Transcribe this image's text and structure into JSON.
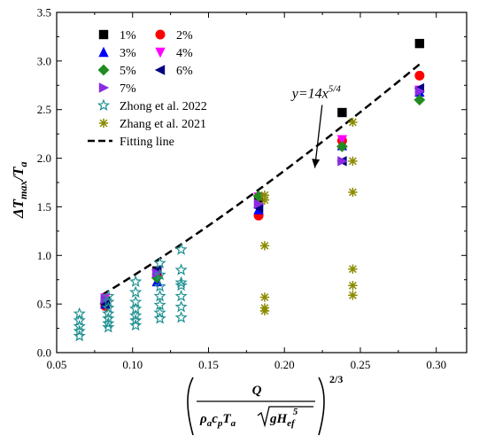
{
  "chart_data": {
    "type": "scatter",
    "title": "",
    "ylabel": "ΔT_max/T_a",
    "ylabel_parts": {
      "base": "ΔT",
      "sub": "max",
      "rest": "/T",
      "sub2": "a"
    },
    "xlabel_parts": {
      "numerator": "Q",
      "den_rho": "ρ",
      "den_rho_sub": "a",
      "den_c": "c",
      "den_c_sub": "p",
      "den_T": "T",
      "den_T_sub": "a",
      "den_sqrt_g": "gH",
      "den_sqrt_sub": "ef",
      "den_sqrt_sup": "5",
      "exponent": "2/3"
    },
    "xlim": [
      0.05,
      0.32
    ],
    "ylim": [
      0.0,
      3.5
    ],
    "xticks": [
      "0.05",
      "0.10",
      "0.15",
      "0.20",
      "0.25",
      "0.30"
    ],
    "xtick_values": [
      0.05,
      0.1,
      0.15,
      0.2,
      0.25,
      0.3
    ],
    "yticks": [
      "0.0",
      "0.5",
      "1.0",
      "1.5",
      "2.0",
      "2.5",
      "3.0",
      "3.5"
    ],
    "ytick_values": [
      0.0,
      0.5,
      1.0,
      1.5,
      2.0,
      2.5,
      3.0,
      3.5
    ],
    "grid": false,
    "legend_position": "top-left",
    "series": [
      {
        "name": "1%",
        "marker": "square",
        "color": "#000000",
        "x": [
          0.082,
          0.116,
          0.183,
          0.238,
          0.289
        ],
        "y": [
          0.53,
          0.84,
          1.55,
          2.47,
          3.18
        ]
      },
      {
        "name": "2%",
        "marker": "circle",
        "color": "#ff0000",
        "x": [
          0.082,
          0.116,
          0.183,
          0.238,
          0.289
        ],
        "y": [
          0.48,
          0.8,
          1.41,
          2.18,
          2.85
        ]
      },
      {
        "name": "3%",
        "marker": "triangle-up",
        "color": "#0000ff",
        "x": [
          0.082,
          0.116,
          0.183,
          0.238,
          0.289
        ],
        "y": [
          0.5,
          0.73,
          1.47,
          2.13,
          2.68
        ]
      },
      {
        "name": "4%",
        "marker": "triangle-down",
        "color": "#ff00ff",
        "x": [
          0.082,
          0.116,
          0.183,
          0.238,
          0.289
        ],
        "y": [
          0.56,
          0.82,
          1.6,
          2.19,
          2.7
        ]
      },
      {
        "name": "5%",
        "marker": "diamond",
        "color": "#228b22",
        "x": [
          0.082,
          0.116,
          0.183,
          0.238,
          0.289
        ],
        "y": [
          0.51,
          0.77,
          1.61,
          2.12,
          2.6
        ]
      },
      {
        "name": "6%",
        "marker": "triangle-left",
        "color": "#000080",
        "x": [
          0.082,
          0.116,
          0.183,
          0.238,
          0.289
        ],
        "y": [
          0.5,
          0.85,
          1.49,
          1.97,
          2.72
        ]
      },
      {
        "name": "7%",
        "marker": "triangle-right",
        "color": "#8a2be2",
        "x": [
          0.082,
          0.116,
          0.183,
          0.238,
          0.289
        ],
        "y": [
          0.55,
          0.82,
          1.53,
          1.97,
          2.69
        ]
      },
      {
        "name": "Zhong et al. 2022",
        "marker": "star-open",
        "color": "#1e9090",
        "x": [
          0.065,
          0.065,
          0.065,
          0.065,
          0.065,
          0.084,
          0.084,
          0.084,
          0.084,
          0.084,
          0.084,
          0.084,
          0.102,
          0.102,
          0.102,
          0.102,
          0.102,
          0.102,
          0.102,
          0.118,
          0.118,
          0.118,
          0.118,
          0.118,
          0.118,
          0.118,
          0.132,
          0.132,
          0.132,
          0.132,
          0.132,
          0.132,
          0.132
        ],
        "y": [
          0.4,
          0.33,
          0.27,
          0.22,
          0.17,
          0.58,
          0.52,
          0.46,
          0.4,
          0.35,
          0.3,
          0.26,
          0.73,
          0.62,
          0.52,
          0.45,
          0.38,
          0.33,
          0.28,
          0.92,
          0.8,
          0.68,
          0.58,
          0.49,
          0.41,
          0.35,
          1.06,
          0.85,
          0.72,
          0.69,
          0.58,
          0.47,
          0.36
        ]
      },
      {
        "name": "Zhang et al. 2021",
        "marker": "asterisk",
        "color": "#8b8b00",
        "x": [
          0.187,
          0.187,
          0.187,
          0.187,
          0.187,
          0.187,
          0.245,
          0.245,
          0.245,
          0.245,
          0.245,
          0.245
        ],
        "y": [
          1.62,
          1.57,
          1.1,
          0.57,
          0.46,
          0.43,
          2.37,
          1.97,
          1.65,
          0.86,
          0.69,
          0.59
        ]
      }
    ],
    "fit": {
      "name": "Fitting line",
      "equation": "y=14x^{5/4}",
      "coef": 14,
      "power": 1.25,
      "x_range": [
        0.08,
        0.29
      ],
      "annotation_text_main": "y=14x",
      "annotation_text_sup": "5/4",
      "annotation_at": [
        0.205,
        2.62
      ],
      "arrow_to": [
        0.22,
        1.9
      ]
    }
  }
}
